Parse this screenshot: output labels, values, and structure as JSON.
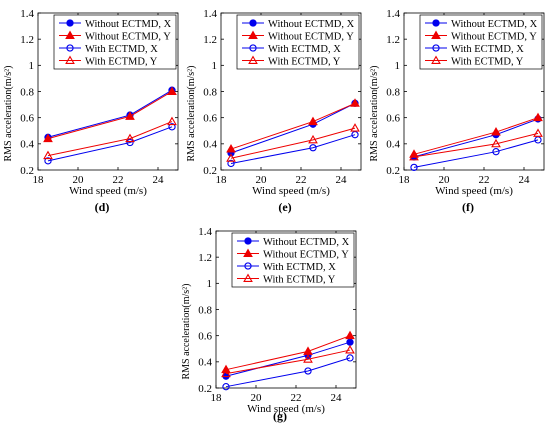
{
  "chart_data": [
    {
      "type": "line",
      "panel_label": "(d)",
      "xlabel": "Wind speed (m/s)",
      "ylabel": "RMS acceleration(m/s²)",
      "xlim": [
        18,
        25
      ],
      "ylim": [
        0.2,
        1.4
      ],
      "xticks": [
        "18",
        "20",
        "22",
        "24"
      ],
      "yticks": [
        "0.2",
        "0.4",
        "0.6",
        "0.8",
        "1",
        "1.2",
        "1.4"
      ],
      "x": [
        18.5,
        22.6,
        24.7
      ],
      "series": [
        {
          "name": "Without ECTMD, X",
          "values": [
            0.45,
            0.62,
            0.81
          ]
        },
        {
          "name": "Without ECTMD, Y",
          "values": [
            0.44,
            0.61,
            0.8
          ]
        },
        {
          "name": "With ECTMD, X",
          "values": [
            0.27,
            0.41,
            0.53
          ]
        },
        {
          "name": "With ECTMD, Y",
          "values": [
            0.31,
            0.44,
            0.57
          ]
        }
      ]
    },
    {
      "type": "line",
      "panel_label": "(e)",
      "xlabel": "Wind speed (m/s)",
      "ylabel": "RMS acceleration(m/s²)",
      "xlim": [
        18,
        25
      ],
      "ylim": [
        0.2,
        1.4
      ],
      "xticks": [
        "18",
        "20",
        "22",
        "24"
      ],
      "yticks": [
        "0.2",
        "0.4",
        "0.6",
        "0.8",
        "1",
        "1.2",
        "1.4"
      ],
      "x": [
        18.5,
        22.6,
        24.7
      ],
      "series": [
        {
          "name": "Without ECTMD, X",
          "values": [
            0.33,
            0.55,
            0.71
          ]
        },
        {
          "name": "Without ECTMD, Y",
          "values": [
            0.36,
            0.57,
            0.71
          ]
        },
        {
          "name": "With ECTMD, X",
          "values": [
            0.25,
            0.37,
            0.47
          ]
        },
        {
          "name": "With ECTMD, Y",
          "values": [
            0.29,
            0.43,
            0.52
          ]
        }
      ]
    },
    {
      "type": "line",
      "panel_label": "(f)",
      "xlabel": "Wind speed (m/s)",
      "ylabel": "RMS acceleration(m/s²)",
      "xlim": [
        18,
        25
      ],
      "ylim": [
        0.2,
        1.4
      ],
      "xticks": [
        "18",
        "20",
        "22",
        "24"
      ],
      "yticks": [
        "0.2",
        "0.4",
        "0.6",
        "0.8",
        "1",
        "1.2",
        "1.4"
      ],
      "x": [
        18.5,
        22.6,
        24.7
      ],
      "series": [
        {
          "name": "Without ECTMD, X",
          "values": [
            0.3,
            0.47,
            0.59
          ]
        },
        {
          "name": "Without ECTMD, Y",
          "values": [
            0.32,
            0.49,
            0.6
          ]
        },
        {
          "name": "With ECTMD, X",
          "values": [
            0.22,
            0.34,
            0.43
          ]
        },
        {
          "name": "With ECTMD, Y",
          "values": [
            0.3,
            0.4,
            0.48
          ]
        }
      ]
    },
    {
      "type": "line",
      "panel_label": "(g)",
      "xlabel": "Wind speed (m/s)",
      "ylabel": "RMS acceleration(m/s²)",
      "xlim": [
        18,
        25
      ],
      "ylim": [
        0.2,
        1.4
      ],
      "xticks": [
        "18",
        "20",
        "22",
        "24"
      ],
      "yticks": [
        "0.2",
        "0.4",
        "0.6",
        "0.8",
        "1",
        "1.2",
        "1.4"
      ],
      "x": [
        18.5,
        22.6,
        24.7
      ],
      "series": [
        {
          "name": "Without ECTMD, X",
          "values": [
            0.29,
            0.45,
            0.55
          ]
        },
        {
          "name": "Without ECTMD, Y",
          "values": [
            0.34,
            0.48,
            0.6
          ]
        },
        {
          "name": "With ECTMD, X",
          "values": [
            0.21,
            0.33,
            0.43
          ]
        },
        {
          "name": "With ECTMD, Y",
          "values": [
            0.31,
            0.42,
            0.49
          ]
        }
      ]
    }
  ],
  "style": {
    "series_colors": [
      "#0000ee",
      "#ee0000",
      "#0000ee",
      "#ee0000"
    ],
    "series_markers": [
      "filled-circle",
      "filled-triangle",
      "open-circle",
      "open-triangle"
    ],
    "grid": false,
    "legend_position": "top-right inside",
    "background": "#ffffff"
  }
}
